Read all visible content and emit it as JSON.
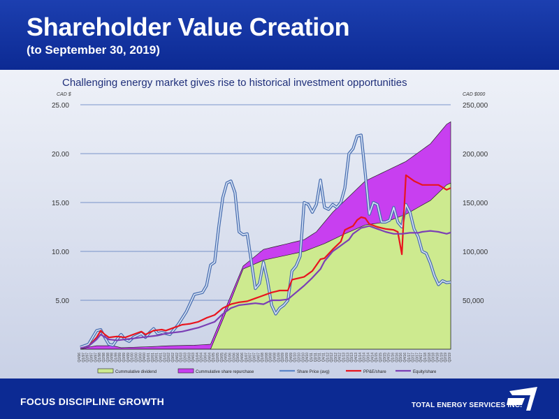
{
  "header": {
    "title": "Shareholder Value Creation",
    "subtitle": "(to September 30, 2019)"
  },
  "footer": {
    "tagline": "FOCUS  DISCIPLINE  GROWTH",
    "company": "TOTAL ENERGY SERVICES INC."
  },
  "colors": {
    "header_bg": "#0c2a93",
    "dividend_fill": "#cdea8f",
    "repurchase_fill": "#c83ff0",
    "share_price": "#5c86c8",
    "ppe": "#e8141e",
    "equity": "#7b3fb5"
  },
  "chart_data": {
    "type": "area",
    "title": "Challenging energy market gives rise to historical investment opportunities",
    "left_axis_label": "CAD $",
    "right_axis_label": "CAD $000",
    "left_ylim": [
      0,
      25
    ],
    "right_ylim": [
      0,
      250000
    ],
    "left_ticks": [
      "25.00",
      "20.00",
      "15.00",
      "10.00",
      "5.00"
    ],
    "right_ticks": [
      "250,000",
      "200,000",
      "150,000",
      "100,000",
      "50,000"
    ],
    "grid": true,
    "legend_position": "bottom",
    "categories": [
      "Q4/96",
      "Q1/97",
      "Q2/97",
      "Q3/97",
      "Q4/97",
      "Q1/98",
      "Q2/98",
      "Q3/98",
      "Q4/98",
      "Q1/99",
      "Q2/99",
      "Q3/99",
      "Q4/99",
      "Q1/00",
      "Q2/00",
      "Q3/00",
      "Q4/00",
      "Q1/01",
      "Q2/01",
      "Q3/01",
      "Q4/01",
      "Q1/02",
      "Q2/02",
      "Q3/02",
      "Q4/02",
      "Q1/03",
      "Q2/03",
      "Q3/03",
      "Q4/03",
      "Q1/04",
      "Q2/04",
      "Q3/04",
      "Q4/04",
      "Q1/05",
      "Q2/05",
      "Q3/05",
      "Q4/05",
      "Q1/06",
      "Q2/06",
      "Q3/06",
      "Q4/06",
      "Q1/07",
      "Q2/07",
      "Q3/07",
      "Q4/07",
      "Q1/08",
      "Q2/08",
      "Q3/08",
      "Q4/08",
      "Q1/09",
      "Q2/09",
      "Q3/09",
      "Q4/09",
      "Q1/10",
      "Q2/10",
      "Q3/10",
      "Q4/10",
      "Q1/11",
      "Q2/11",
      "Q3/11",
      "Q4/11",
      "Q1/12",
      "Q2/12",
      "Q3/12",
      "Q4/12",
      "Q1/13",
      "Q2/13",
      "Q3/13",
      "Q4/13",
      "Q1/14",
      "Q2/14",
      "Q3/14",
      "Q4/14",
      "Q1/15",
      "Q2/15",
      "Q3/15",
      "Q4/15",
      "Q1/16",
      "Q2/16",
      "Q3/16",
      "Q4/16",
      "Q1/17",
      "Q2/17",
      "Q3/17",
      "Q4/17",
      "Q1/18",
      "Q2/18",
      "Q3/18",
      "Q4/18",
      "Q1/19",
      "Q2/19",
      "Q3/19"
    ],
    "series": [
      {
        "name": "Cummulative dividend",
        "axis": "right",
        "kind": "area",
        "color": "#cdea8f",
        "anchors": [
          [
            0,
            0
          ],
          [
            17,
            0
          ],
          [
            22,
            0
          ],
          [
            28,
            0
          ],
          [
            32,
            0
          ],
          [
            37,
            50000
          ],
          [
            40,
            82000
          ],
          [
            45,
            91000
          ],
          [
            55,
            100000
          ],
          [
            60,
            108000
          ],
          [
            65,
            118000
          ],
          [
            70,
            127000
          ],
          [
            75,
            130000
          ],
          [
            80,
            138000
          ],
          [
            86,
            152000
          ],
          [
            90,
            168000
          ]
        ]
      },
      {
        "name": "Cummulative share repurchase",
        "axis": "right",
        "kind": "area",
        "color": "#c83ff0",
        "anchors": [
          [
            0,
            0
          ],
          [
            2,
            2000
          ],
          [
            4,
            3500
          ],
          [
            8,
            3500
          ],
          [
            10,
            1500
          ],
          [
            17,
            2500
          ],
          [
            22,
            3500
          ],
          [
            28,
            4000
          ],
          [
            32,
            5000
          ],
          [
            37,
            55000
          ],
          [
            40,
            85000
          ],
          [
            45,
            102000
          ],
          [
            55,
            112000
          ],
          [
            58,
            120000
          ],
          [
            62,
            140000
          ],
          [
            65,
            152000
          ],
          [
            70,
            172000
          ],
          [
            75,
            182000
          ],
          [
            80,
            192000
          ],
          [
            86,
            210000
          ],
          [
            90,
            230000
          ]
        ]
      },
      {
        "name": "Share Price (avg)",
        "axis": "left",
        "kind": "line",
        "color": "#5c86c8",
        "anchors": [
          [
            0,
            0.2
          ],
          [
            2,
            0.5
          ],
          [
            4,
            1.9
          ],
          [
            5,
            2.0
          ],
          [
            6,
            1.2
          ],
          [
            7,
            0.5
          ],
          [
            8,
            0.4
          ],
          [
            9,
            1.0
          ],
          [
            10,
            1.5
          ],
          [
            11,
            1.0
          ],
          [
            12,
            0.8
          ],
          [
            13,
            1.2
          ],
          [
            15,
            1.6
          ],
          [
            16,
            1.2
          ],
          [
            17,
            1.7
          ],
          [
            18,
            2.1
          ],
          [
            19,
            1.6
          ],
          [
            20,
            1.7
          ],
          [
            22,
            1.5
          ],
          [
            24,
            2.5
          ],
          [
            26,
            3.8
          ],
          [
            28,
            5.6
          ],
          [
            30,
            5.8
          ],
          [
            31,
            6.5
          ],
          [
            32,
            8.6
          ],
          [
            33,
            8.9
          ],
          [
            34,
            12.5
          ],
          [
            35,
            15.5
          ],
          [
            36,
            17.0
          ],
          [
            37,
            17.2
          ],
          [
            38,
            16.0
          ],
          [
            39,
            12.0
          ],
          [
            40,
            11.7
          ],
          [
            41,
            11.8
          ],
          [
            42,
            9.0
          ],
          [
            43,
            6.2
          ],
          [
            44,
            6.7
          ],
          [
            45,
            8.9
          ],
          [
            46,
            7.0
          ],
          [
            47,
            4.5
          ],
          [
            48,
            3.6
          ],
          [
            49,
            4.2
          ],
          [
            50,
            4.5
          ],
          [
            51,
            5.0
          ],
          [
            52,
            8.0
          ],
          [
            53,
            8.5
          ],
          [
            54,
            9.5
          ],
          [
            55,
            15.0
          ],
          [
            56,
            14.8
          ],
          [
            57,
            14.0
          ],
          [
            58,
            14.8
          ],
          [
            59,
            17.3
          ],
          [
            60,
            14.5
          ],
          [
            61,
            14.3
          ],
          [
            62,
            14.8
          ],
          [
            63,
            14.5
          ],
          [
            64,
            15.0
          ],
          [
            65,
            16.5
          ],
          [
            66,
            20.0
          ],
          [
            67,
            20.5
          ],
          [
            68,
            21.8
          ],
          [
            69,
            21.9
          ],
          [
            70,
            18.0
          ],
          [
            71,
            13.8
          ],
          [
            72,
            15.0
          ],
          [
            73,
            14.8
          ],
          [
            74,
            13.0
          ],
          [
            75,
            13.0
          ],
          [
            76,
            13.2
          ],
          [
            77,
            14.5
          ],
          [
            78,
            13.0
          ],
          [
            79,
            12.5
          ],
          [
            80,
            14.8
          ],
          [
            81,
            14.0
          ],
          [
            82,
            12.3
          ],
          [
            83,
            11.5
          ],
          [
            84,
            10.0
          ],
          [
            85,
            9.8
          ],
          [
            86,
            8.8
          ],
          [
            87,
            7.5
          ],
          [
            88,
            6.6
          ],
          [
            89,
            7.0
          ],
          [
            90,
            6.8
          ]
        ]
      },
      {
        "name": "PP&E/share",
        "axis": "left",
        "kind": "line",
        "color": "#e8141e",
        "anchors": [
          [
            0,
            0.1
          ],
          [
            2,
            0.3
          ],
          [
            4,
            1.2
          ],
          [
            5,
            1.9
          ],
          [
            6,
            1.5
          ],
          [
            7,
            1.2
          ],
          [
            9,
            1.3
          ],
          [
            11,
            1.2
          ],
          [
            13,
            1.5
          ],
          [
            15,
            1.8
          ],
          [
            16,
            1.5
          ],
          [
            18,
            1.9
          ],
          [
            20,
            2.0
          ],
          [
            21,
            1.9
          ],
          [
            23,
            2.2
          ],
          [
            25,
            2.5
          ],
          [
            27,
            2.6
          ],
          [
            29,
            2.8
          ],
          [
            31,
            3.2
          ],
          [
            33,
            3.5
          ],
          [
            35,
            4.2
          ],
          [
            37,
            4.6
          ],
          [
            39,
            4.8
          ],
          [
            41,
            4.9
          ],
          [
            43,
            5.2
          ],
          [
            45,
            5.5
          ],
          [
            47,
            5.8
          ],
          [
            49,
            6.0
          ],
          [
            51,
            6.0
          ],
          [
            52,
            7.1
          ],
          [
            53,
            7.2
          ],
          [
            55,
            7.4
          ],
          [
            57,
            8.0
          ],
          [
            58,
            8.6
          ],
          [
            59,
            9.2
          ],
          [
            60,
            9.3
          ],
          [
            62,
            10.2
          ],
          [
            64,
            11.0
          ],
          [
            65,
            12.2
          ],
          [
            67,
            12.6
          ],
          [
            68,
            13.2
          ],
          [
            69,
            13.5
          ],
          [
            70,
            13.4
          ],
          [
            71,
            12.8
          ],
          [
            73,
            12.5
          ],
          [
            75,
            12.3
          ],
          [
            77,
            12.2
          ],
          [
            78,
            12.0
          ],
          [
            79,
            9.7
          ],
          [
            80,
            17.8
          ],
          [
            81,
            17.5
          ],
          [
            82,
            17.2
          ],
          [
            84,
            16.8
          ],
          [
            86,
            16.8
          ],
          [
            88,
            16.8
          ],
          [
            90,
            16.3
          ]
        ]
      },
      {
        "name": "Equity/share",
        "axis": "left",
        "kind": "line",
        "color": "#7b3fb5",
        "anchors": [
          [
            0,
            0.1
          ],
          [
            2,
            0.3
          ],
          [
            4,
            1.0
          ],
          [
            5,
            1.5
          ],
          [
            7,
            1.0
          ],
          [
            9,
            0.9
          ],
          [
            11,
            1.0
          ],
          [
            13,
            1.1
          ],
          [
            15,
            1.2
          ],
          [
            17,
            1.3
          ],
          [
            19,
            1.4
          ],
          [
            21,
            1.6
          ],
          [
            23,
            1.7
          ],
          [
            25,
            1.8
          ],
          [
            27,
            2.0
          ],
          [
            29,
            2.2
          ],
          [
            31,
            2.5
          ],
          [
            33,
            2.8
          ],
          [
            35,
            3.6
          ],
          [
            37,
            4.2
          ],
          [
            39,
            4.5
          ],
          [
            41,
            4.6
          ],
          [
            43,
            4.7
          ],
          [
            45,
            4.6
          ],
          [
            47,
            5.0
          ],
          [
            49,
            5.0
          ],
          [
            51,
            5.1
          ],
          [
            53,
            5.8
          ],
          [
            55,
            6.5
          ],
          [
            57,
            7.3
          ],
          [
            59,
            8.2
          ],
          [
            60,
            9.0
          ],
          [
            62,
            10.0
          ],
          [
            64,
            10.6
          ],
          [
            66,
            11.2
          ],
          [
            67,
            11.8
          ],
          [
            69,
            12.4
          ],
          [
            71,
            12.6
          ],
          [
            73,
            12.3
          ],
          [
            75,
            12.0
          ],
          [
            77,
            11.8
          ],
          [
            79,
            11.8
          ],
          [
            81,
            11.9
          ],
          [
            83,
            11.9
          ],
          [
            84,
            12.0
          ],
          [
            86,
            12.1
          ],
          [
            88,
            12.0
          ],
          [
            90,
            11.8
          ]
        ]
      }
    ]
  }
}
